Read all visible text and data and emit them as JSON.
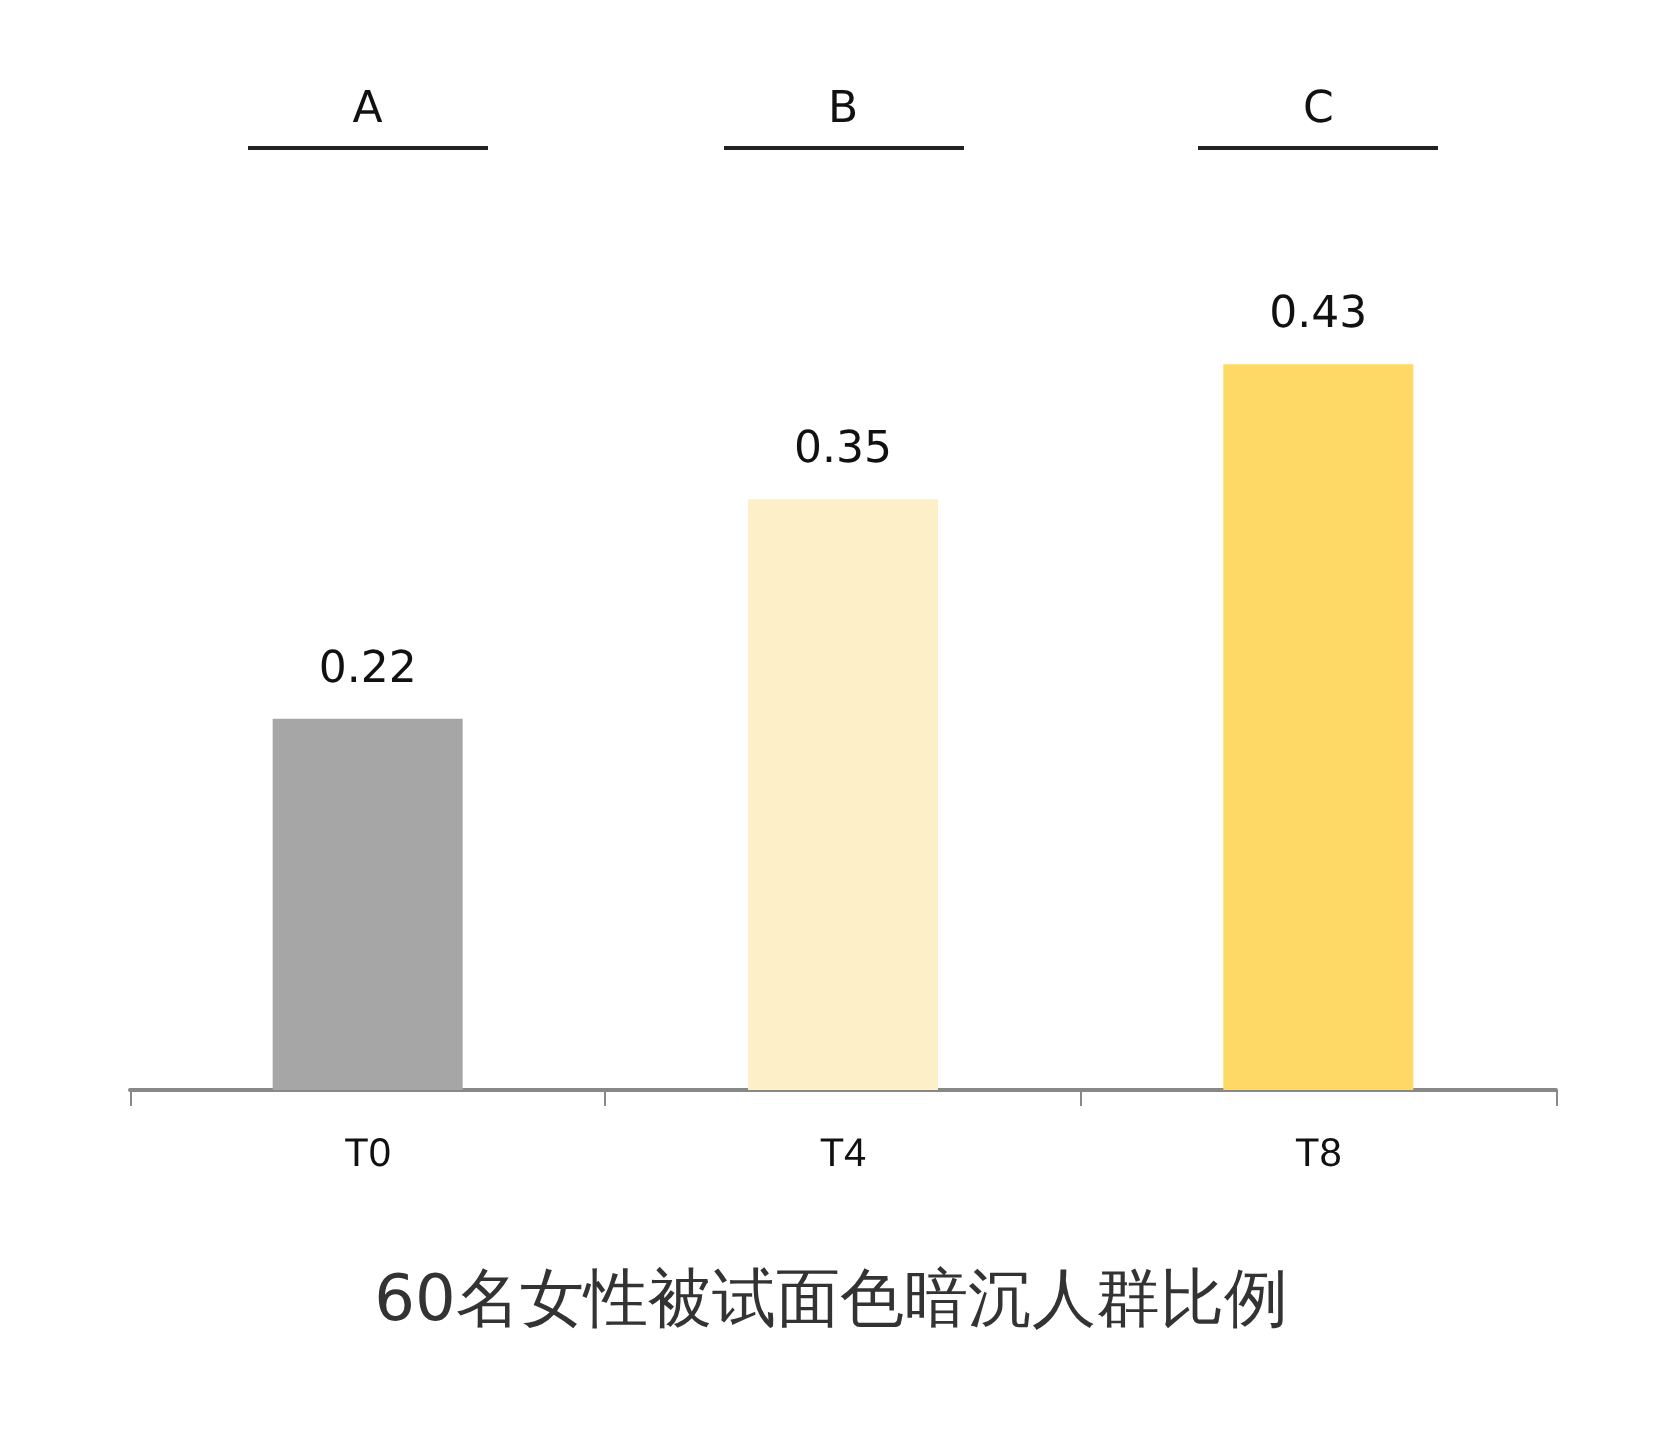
{
  "chart_data": {
    "type": "bar",
    "title": "60名女性被试面色暗沉人群比例",
    "categories": [
      "T0",
      "T4",
      "T8"
    ],
    "values": [
      0.22,
      0.35,
      0.43
    ],
    "colors": [
      "#a6a6a6",
      "#fdf0c8",
      "#fed966"
    ],
    "data_labels": true,
    "annotations": [
      "A",
      "B",
      "C"
    ]
  }
}
